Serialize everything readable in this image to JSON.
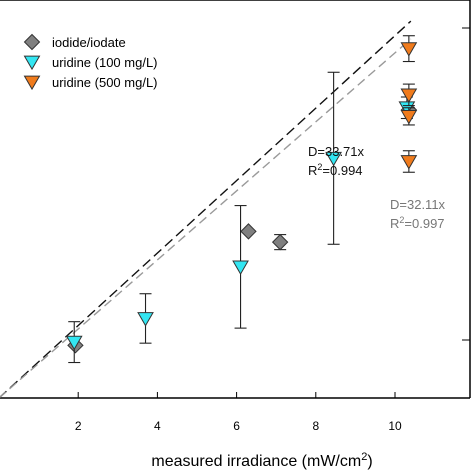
{
  "chart_data": {
    "type": "scatter",
    "xlabel": "measured irradiance (mW/cm",
    "xlabel_sup": "2",
    "xlabel_end": ")",
    "xlim": [
      0,
      10.4
    ],
    "xticks": [
      2,
      4,
      6,
      8,
      10
    ],
    "ylim": [
      0,
      370
    ],
    "grid": false,
    "legend_position": "top-left",
    "series": [
      {
        "name": "iodide/iodate",
        "marker": "diamond",
        "color": "#808080",
        "points": [
          {
            "x": 1.93,
            "y": 49,
            "yerr": 0
          },
          {
            "x": 6.3,
            "y": 155,
            "yerr": 0
          },
          {
            "x": 7.1,
            "y": 145,
            "yerr": 7
          },
          {
            "x": 10.35,
            "y": 268,
            "yerr": 0
          }
        ]
      },
      {
        "name": "uridine (100 mg/L)",
        "marker": "triangle-down",
        "color": "#33e6f2",
        "points": [
          {
            "x": 1.9,
            "y": 52,
            "yerr": 19
          },
          {
            "x": 3.7,
            "y": 74,
            "yerr": 23
          },
          {
            "x": 6.1,
            "y": 122,
            "yerr": 57
          },
          {
            "x": 8.45,
            "y": 223,
            "yerr": 80
          },
          {
            "x": 10.3,
            "y": 270,
            "yerr": 10
          }
        ]
      },
      {
        "name": "uridine (500 mg/L)",
        "marker": "triangle-down",
        "color": "#f07b1c",
        "points": [
          {
            "x": 10.35,
            "y": 325,
            "yerr": 12
          },
          {
            "x": 10.35,
            "y": 282,
            "yerr": 10
          },
          {
            "x": 10.35,
            "y": 262,
            "yerr": 8
          },
          {
            "x": 10.35,
            "y": 220,
            "yerr": 10
          }
        ]
      }
    ],
    "fits": [
      {
        "slope": 33.71,
        "color": "#111111",
        "dash": "10,5",
        "eq": "D=33.71x",
        "r2_prefix": "R",
        "r2_sup": "2",
        "r2_value": "=0.994"
      },
      {
        "slope": 32.11,
        "color": "#9a9a9a",
        "dash": "9,5",
        "eq": "D=32.11x",
        "r2_prefix": "R",
        "r2_sup": "2",
        "r2_value": "=0.997"
      }
    ]
  }
}
